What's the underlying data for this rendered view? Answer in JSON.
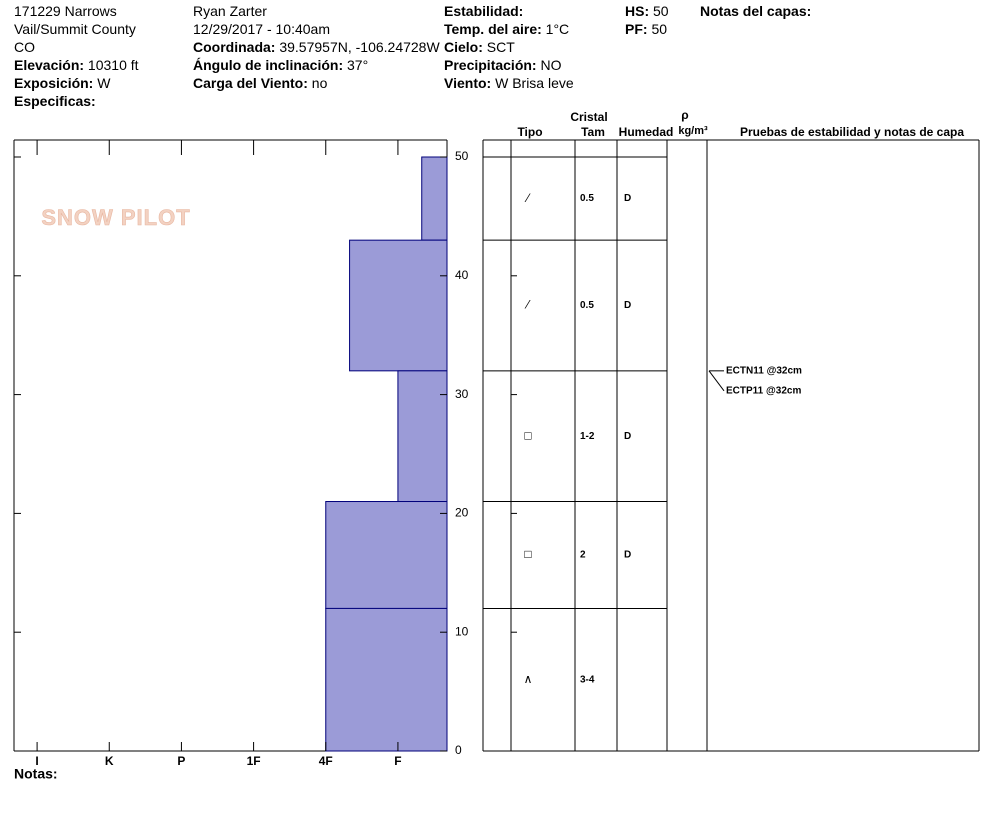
{
  "header": {
    "columns": [
      [
        {
          "value": "171229 Narrows"
        },
        {
          "value": "Vail/Summit County"
        },
        {
          "value": "CO"
        },
        {
          "label": "Elevación:",
          "value": "10310 ft"
        },
        {
          "label": "Exposición:",
          "value": "W"
        },
        {
          "label": "Especificas:"
        }
      ],
      [
        {
          "value": "Ryan Zarter"
        },
        {
          "value": "12/29/2017 - 10:40am"
        },
        {
          "label": "Coordinada:",
          "value": "39.57957N, -106.24728W"
        },
        {
          "label": "Ángulo de inclinación:",
          "value": "37°"
        },
        {
          "label": "Carga del Viento:",
          "value": "no"
        }
      ],
      [
        {
          "label": "Estabilidad:"
        },
        {
          "label": "Temp. del aire:",
          "value": "1°C"
        },
        {
          "label": "Cielo:",
          "value": "SCT"
        },
        {
          "label": "Precipitación:",
          "value": "NO"
        },
        {
          "label": "Viento:",
          "value": "W Brisa leve"
        }
      ],
      [
        {
          "label": "HS:",
          "value": "50"
        },
        {
          "label": "PF:",
          "value": "50"
        }
      ],
      [
        {
          "label": "Notas del capas:"
        }
      ]
    ]
  },
  "logo": "SNOW PILOT",
  "profile": {
    "ylim": [
      0,
      50
    ],
    "yticks": [
      0,
      10,
      20,
      30,
      40,
      50
    ],
    "xlim": [
      5.32,
      -0.68
    ],
    "xticks": [
      {
        "value": 5,
        "label": "I"
      },
      {
        "value": 4,
        "label": "K"
      },
      {
        "value": 3,
        "label": "P"
      },
      {
        "value": 2,
        "label": "1F"
      },
      {
        "value": 1,
        "label": "4F"
      },
      {
        "value": 0,
        "label": "F"
      }
    ],
    "color": "#9b9bd7",
    "layers": [
      {
        "top": 50,
        "bottom": 43,
        "hardness": -0.33,
        "grain": "⁄",
        "size": "0.5",
        "moisture": "D"
      },
      {
        "top": 43,
        "bottom": 32,
        "hardness": 0.67,
        "grain": "⁄",
        "size": "0.5",
        "moisture": "D"
      },
      {
        "top": 32,
        "bottom": 21,
        "hardness": 0,
        "grain": "□",
        "size": "1-2",
        "moisture": "D"
      },
      {
        "top": 21,
        "bottom": 12,
        "hardness": 1,
        "grain": "□",
        "size": "2",
        "moisture": "D"
      },
      {
        "top": 12,
        "bottom": 0,
        "hardness": 1,
        "grain": "∧",
        "size": "3-4",
        "moisture": null
      }
    ]
  },
  "table": {
    "cristal": "Cristal",
    "tipo": "Tipo",
    "tam": "Tam",
    "humedad": "Humedad",
    "rho": "ρ",
    "density_unit": "kg/m³",
    "tests_header": "Pruebas de estabilidad y notas de capa"
  },
  "tests": {
    "depth": 32,
    "labels": [
      "ECTN11 @32cm",
      "ECTP11 @32cm"
    ]
  },
  "footer": {
    "notes": "Notas:"
  }
}
